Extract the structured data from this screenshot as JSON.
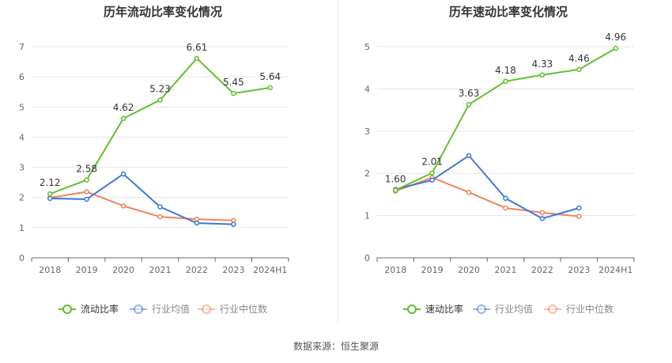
{
  "source_label": "数据来源：恒生聚源",
  "chart_data": [
    {
      "type": "line",
      "title": "历年流动比率变化情况",
      "categories": [
        "2018",
        "2019",
        "2020",
        "2021",
        "2022",
        "2023",
        "2024H1"
      ],
      "ylim": [
        0,
        7
      ],
      "yticks": [
        "0",
        "1",
        "2",
        "3",
        "4",
        "5",
        "6",
        "7"
      ],
      "grid": true,
      "legend_position": "bottom",
      "series": [
        {
          "name": "流动比率",
          "color": "#5cc22e",
          "values": [
            2.12,
            2.58,
            4.62,
            5.23,
            6.61,
            5.45,
            5.64
          ],
          "labels": [
            "2.12",
            "2.58",
            "4.62",
            "5.23",
            "6.61",
            "5.45",
            "5.64"
          ]
        },
        {
          "name": "行业均值",
          "color": "#3c78d8",
          "values": [
            1.97,
            1.94,
            2.78,
            1.69,
            1.15,
            1.11,
            null
          ]
        },
        {
          "name": "行业中位数",
          "color": "#f0845a",
          "values": [
            1.99,
            2.19,
            1.72,
            1.36,
            1.28,
            1.24,
            null
          ]
        }
      ]
    },
    {
      "type": "line",
      "title": "历年速动比率变化情况",
      "categories": [
        "2018",
        "2019",
        "2020",
        "2021",
        "2022",
        "2023",
        "2024H1"
      ],
      "ylim": [
        0,
        5
      ],
      "yticks": [
        "0",
        "1",
        "2",
        "3",
        "4",
        "5"
      ],
      "grid": true,
      "legend_position": "bottom",
      "series": [
        {
          "name": "速动比率",
          "color": "#5cc22e",
          "values": [
            1.6,
            2.01,
            3.63,
            4.18,
            4.33,
            4.46,
            4.96
          ],
          "labels": [
            "1.60",
            "2.01",
            "3.63",
            "4.18",
            "4.33",
            "4.46",
            "4.96"
          ]
        },
        {
          "name": "行业均值",
          "color": "#3c78d8",
          "values": [
            1.62,
            1.84,
            2.42,
            1.41,
            0.93,
            1.18,
            null
          ]
        },
        {
          "name": "行业中位数",
          "color": "#f0845a",
          "values": [
            1.58,
            1.9,
            1.55,
            1.18,
            1.07,
            0.98,
            null
          ]
        }
      ]
    }
  ]
}
